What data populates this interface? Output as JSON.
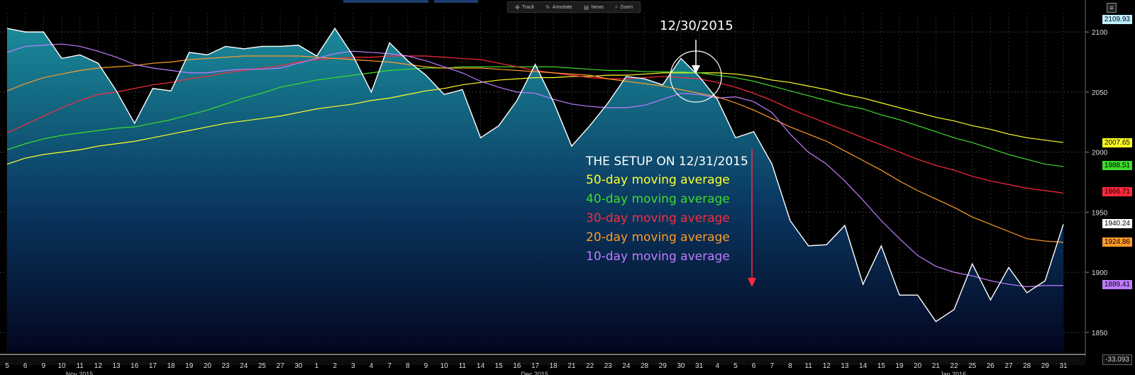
{
  "toolbar": {
    "track": "Track",
    "annotate": "Annotate",
    "news": "News",
    "zoom": "Zoom"
  },
  "annotations": {
    "date": "12/30/2015",
    "setup": "THE SETUP ON 12/31/2015"
  },
  "legend": [
    {
      "label": "50-day moving average",
      "color": "#ffff2a"
    },
    {
      "label": "40-day moving average",
      "color": "#3ddc2a"
    },
    {
      "label": "30-day moving average",
      "color": "#ff2a3c"
    },
    {
      "label": "20-day moving average",
      "color": "#ff9a2a"
    },
    {
      "label": "10-day moving average",
      "color": "#c07cff"
    }
  ],
  "chart_data": {
    "type": "line",
    "ylim": [
      1834,
      2116
    ],
    "yticks": [
      1850,
      1900,
      1950,
      2000,
      2050,
      2100
    ],
    "x": [
      "5",
      "6",
      "9",
      "10",
      "11",
      "12",
      "13",
      "16",
      "17",
      "18",
      "19",
      "20",
      "23",
      "24",
      "25",
      "27",
      "30",
      "1",
      "2",
      "3",
      "4",
      "7",
      "8",
      "9",
      "10",
      "11",
      "14",
      "15",
      "16",
      "17",
      "18",
      "21",
      "22",
      "23",
      "24",
      "28",
      "29",
      "30",
      "31",
      "4",
      "5",
      "6",
      "7",
      "8",
      "11",
      "12",
      "13",
      "14",
      "15",
      "19",
      "20",
      "21",
      "22",
      "25",
      "26",
      "27",
      "28",
      "29",
      "31"
    ],
    "month_labels": [
      "Nov 2015",
      "Dec 2015",
      "Jan 2016"
    ],
    "series": [
      {
        "key": "price",
        "color": "#ffffff",
        "last": "1940.24",
        "values": [
          2103,
          2100,
          2100,
          2078,
          2081,
          2074,
          2051,
          2024,
          2053,
          2051,
          2083,
          2081,
          2088,
          2086,
          2088,
          2088,
          2089,
          2080,
          2103,
          2080,
          2050,
          2091,
          2076,
          2064,
          2048,
          2052,
          2012,
          2022,
          2043,
          2073,
          2042,
          2005,
          2022,
          2041,
          2063,
          2061,
          2056,
          2078,
          2063,
          2044,
          2012,
          2017,
          1990,
          1943,
          1922,
          1923,
          1939,
          1890,
          1922,
          1881,
          1881,
          1859,
          1869,
          1907,
          1877,
          1904,
          1883,
          1893,
          1940
        ]
      },
      {
        "key": "ma50",
        "color": "#ffff2a",
        "last": "2007.65",
        "values": [
          1990,
          1995,
          1998,
          2000,
          2002,
          2005,
          2007,
          2009,
          2012,
          2015,
          2018,
          2021,
          2024,
          2026,
          2028,
          2030,
          2033,
          2036,
          2038,
          2040,
          2043,
          2045,
          2048,
          2051,
          2053,
          2056,
          2058,
          2060,
          2061,
          2062,
          2062,
          2063,
          2063,
          2064,
          2064,
          2065,
          2066,
          2066,
          2066,
          2066,
          2065,
          2063,
          2060,
          2058,
          2055,
          2052,
          2048,
          2045,
          2041,
          2037,
          2033,
          2029,
          2026,
          2022,
          2019,
          2015,
          2012,
          2010,
          2008
        ]
      },
      {
        "key": "ma40",
        "color": "#3ddc2a",
        "last": "1988.51",
        "values": [
          2002,
          2007,
          2011,
          2014,
          2016,
          2018,
          2020,
          2021,
          2024,
          2027,
          2031,
          2035,
          2040,
          2045,
          2049,
          2054,
          2057,
          2060,
          2062,
          2064,
          2066,
          2068,
          2069,
          2070,
          2070,
          2071,
          2071,
          2071,
          2071,
          2071,
          2071,
          2070,
          2069,
          2068,
          2068,
          2067,
          2067,
          2067,
          2066,
          2064,
          2062,
          2059,
          2055,
          2051,
          2047,
          2043,
          2039,
          2036,
          2031,
          2027,
          2022,
          2017,
          2012,
          2008,
          2003,
          1998,
          1994,
          1990,
          1988
        ]
      },
      {
        "key": "ma30",
        "color": "#ff2a3c",
        "last": "1966.71",
        "values": [
          2016,
          2023,
          2030,
          2037,
          2043,
          2048,
          2050,
          2053,
          2056,
          2058,
          2061,
          2063,
          2066,
          2068,
          2070,
          2072,
          2075,
          2077,
          2078,
          2079,
          2079,
          2080,
          2080,
          2080,
          2079,
          2078,
          2077,
          2074,
          2071,
          2068,
          2066,
          2064,
          2062,
          2061,
          2061,
          2062,
          2063,
          2062,
          2061,
          2058,
          2054,
          2049,
          2043,
          2036,
          2030,
          2024,
          2018,
          2012,
          2006,
          2000,
          1994,
          1989,
          1985,
          1980,
          1976,
          1973,
          1970,
          1968,
          1966
        ]
      },
      {
        "key": "ma20",
        "color": "#ff9a2a",
        "last": "1924.86",
        "values": [
          2051,
          2057,
          2062,
          2065,
          2068,
          2070,
          2071,
          2072,
          2074,
          2075,
          2077,
          2078,
          2079,
          2080,
          2080,
          2080,
          2080,
          2079,
          2078,
          2077,
          2076,
          2075,
          2073,
          2071,
          2070,
          2070,
          2070,
          2069,
          2068,
          2067,
          2066,
          2065,
          2064,
          2061,
          2059,
          2057,
          2055,
          2052,
          2049,
          2046,
          2041,
          2035,
          2028,
          2021,
          2015,
          2009,
          2001,
          1993,
          1985,
          1976,
          1968,
          1961,
          1954,
          1946,
          1940,
          1934,
          1928,
          1926,
          1925
        ]
      },
      {
        "key": "ma10",
        "color": "#c07cff",
        "last": "1889.41",
        "values": [
          2083,
          2088,
          2089,
          2090,
          2088,
          2084,
          2079,
          2073,
          2070,
          2068,
          2066,
          2066,
          2068,
          2069,
          2069,
          2070,
          2074,
          2078,
          2082,
          2084,
          2083,
          2082,
          2080,
          2076,
          2071,
          2066,
          2059,
          2054,
          2050,
          2049,
          2044,
          2040,
          2038,
          2037,
          2037,
          2039,
          2044,
          2049,
          2048,
          2045,
          2046,
          2042,
          2033,
          2015,
          2000,
          1990,
          1976,
          1960,
          1943,
          1928,
          1914,
          1905,
          1900,
          1897,
          1893,
          1890,
          1888,
          1889,
          1889
        ]
      }
    ],
    "price_box": "2109.93",
    "bottom_value": "-33.093"
  }
}
